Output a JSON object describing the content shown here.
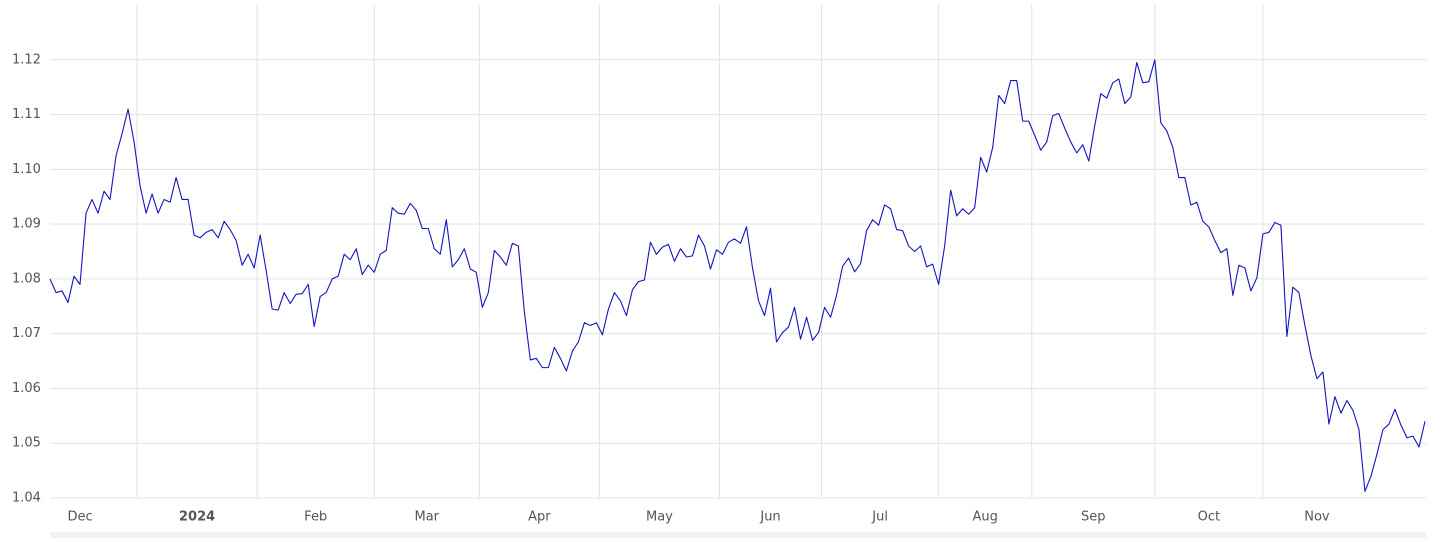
{
  "chart_data": {
    "type": "line",
    "color": "#1414c0",
    "grid": true,
    "values": [
      1.08,
      1.0775,
      1.0778,
      1.0757,
      1.0805,
      1.079,
      1.092,
      1.0945,
      1.092,
      1.096,
      1.0945,
      1.1025,
      1.1065,
      1.111,
      1.105,
      1.097,
      1.092,
      1.0955,
      1.092,
      1.0945,
      1.094,
      1.0985,
      1.0945,
      1.0945,
      1.088,
      1.0875,
      1.0885,
      1.089,
      1.0875,
      1.0905,
      1.089,
      1.087,
      1.0825,
      1.0845,
      1.082,
      1.088,
      1.0815,
      1.0745,
      1.0743,
      1.0775,
      1.0755,
      1.0772,
      1.0773,
      1.079,
      1.0713,
      1.0768,
      1.0775,
      1.08,
      1.0805,
      1.0845,
      1.0835,
      1.0855,
      1.0808,
      1.0825,
      1.0812,
      1.0845,
      1.0852,
      1.093,
      1.092,
      1.0918,
      1.0938,
      1.0925,
      1.0892,
      1.0892,
      1.0855,
      1.0845,
      1.0908,
      1.0822,
      1.0835,
      1.0855,
      1.0818,
      1.0812,
      1.0748,
      1.0775,
      1.0852,
      1.084,
      1.0825,
      1.0865,
      1.086,
      1.074,
      1.0652,
      1.0655,
      1.0638,
      1.0638,
      1.0675,
      1.0655,
      1.0632,
      1.0668,
      1.0685,
      1.072,
      1.0715,
      1.072,
      1.0698,
      1.0745,
      1.0775,
      1.076,
      1.0733,
      1.078,
      1.0795,
      1.0798,
      1.0867,
      1.0845,
      1.0858,
      1.0863,
      1.0832,
      1.0855,
      1.084,
      1.0842,
      1.088,
      1.086,
      1.0818,
      1.0853,
      1.0845,
      1.0867,
      1.0873,
      1.0865,
      1.0895,
      1.082,
      1.076,
      1.0733,
      1.0783,
      1.0685,
      1.0702,
      1.0712,
      1.0748,
      1.069,
      1.073,
      1.0688,
      1.0702,
      1.0748,
      1.073,
      1.077,
      1.0823,
      1.0838,
      1.0813,
      1.0828,
      1.0888,
      1.0908,
      1.0898,
      1.0935,
      1.0928,
      1.089,
      1.0888,
      1.086,
      1.085,
      1.086,
      1.0822,
      1.0827,
      1.079,
      1.086,
      1.0962,
      1.0915,
      1.0928,
      1.0918,
      1.093,
      1.1022,
      1.0995,
      1.104,
      1.1135,
      1.112,
      1.1162,
      1.1162,
      1.1088,
      1.1088,
      1.1062,
      1.1035,
      1.105,
      1.1098,
      1.1102,
      1.1075,
      1.105,
      1.103,
      1.1045,
      1.1015,
      1.108,
      1.1138,
      1.113,
      1.1158,
      1.1165,
      1.112,
      1.1132,
      1.1195,
      1.1158,
      1.116,
      1.12,
      1.1085,
      1.107,
      1.104,
      1.0985,
      1.0985,
      1.0935,
      1.094,
      1.0905,
      1.0895,
      1.087,
      1.0848,
      1.0855,
      1.077,
      1.0825,
      1.082,
      1.0778,
      1.0802,
      1.0882,
      1.0885,
      1.0903,
      1.0898,
      1.0695,
      1.0785,
      1.0775,
      1.0715,
      1.066,
      1.0618,
      1.063,
      1.0535,
      1.0585,
      1.0555,
      1.0578,
      1.056,
      1.0525,
      1.0412,
      1.044,
      1.048,
      1.0525,
      1.0535,
      1.0562,
      1.0533,
      1.051,
      1.0513,
      1.0493,
      1.054
    ],
    "xlim": [
      0,
      229
    ],
    "xticks": [
      {
        "value": -4.5,
        "label": "Dec"
      },
      {
        "value": 14.5,
        "label": "2024"
      },
      {
        "value": 34.5,
        "label": "Feb"
      },
      {
        "value": 54,
        "label": "Mar"
      },
      {
        "value": 71.5,
        "label": "Apr"
      },
      {
        "value": 91.5,
        "label": "May"
      },
      {
        "value": 111.5,
        "label": "Jun"
      },
      {
        "value": 128.5,
        "label": "Jul"
      },
      {
        "value": 148,
        "label": "Aug"
      },
      {
        "value": 163.5,
        "label": "Sep"
      },
      {
        "value": 184,
        "label": "Oct"
      },
      {
        "value": 202,
        "label": "Nov"
      }
    ],
    "ylim": [
      1.04,
      1.13
    ],
    "yticks": [
      1.04,
      1.05,
      1.06,
      1.07,
      1.08,
      1.09,
      {
        "value": 1.1,
        "label": "1.10"
      },
      1.11,
      1.12
    ]
  }
}
